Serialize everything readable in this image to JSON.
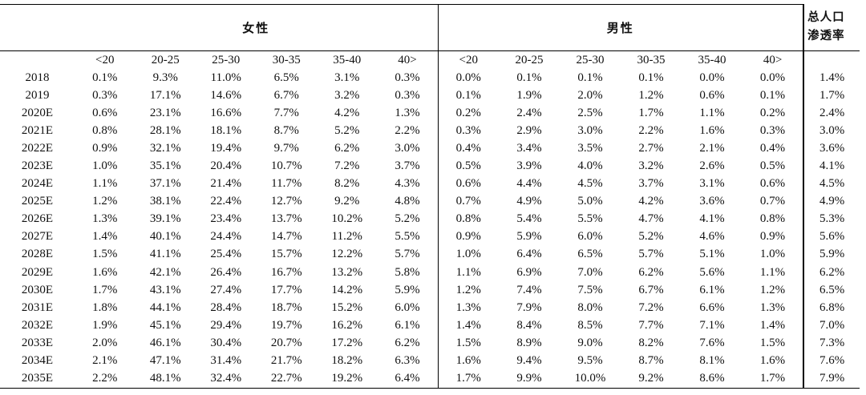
{
  "header": {
    "female_label": "女性",
    "male_label": "男性",
    "penetration_label_line1": "总人口",
    "penetration_label_line2": "渗透率"
  },
  "age_groups": [
    "<20",
    "20-25",
    "25-30",
    "30-35",
    "35-40",
    "40>"
  ],
  "rows": [
    {
      "year": "2018",
      "female": [
        "0.1%",
        "9.3%",
        "11.0%",
        "6.5%",
        "3.1%",
        "0.3%"
      ],
      "male": [
        "0.0%",
        "0.1%",
        "0.1%",
        "0.1%",
        "0.0%",
        "0.0%"
      ],
      "total": "1.4%"
    },
    {
      "year": "2019",
      "female": [
        "0.3%",
        "17.1%",
        "14.6%",
        "6.7%",
        "3.2%",
        "0.3%"
      ],
      "male": [
        "0.1%",
        "1.9%",
        "2.0%",
        "1.2%",
        "0.6%",
        "0.1%"
      ],
      "total": "1.7%"
    },
    {
      "year": "2020E",
      "female": [
        "0.6%",
        "23.1%",
        "16.6%",
        "7.7%",
        "4.2%",
        "1.3%"
      ],
      "male": [
        "0.2%",
        "2.4%",
        "2.5%",
        "1.7%",
        "1.1%",
        "0.2%"
      ],
      "total": "2.4%"
    },
    {
      "year": "2021E",
      "female": [
        "0.8%",
        "28.1%",
        "18.1%",
        "8.7%",
        "5.2%",
        "2.2%"
      ],
      "male": [
        "0.3%",
        "2.9%",
        "3.0%",
        "2.2%",
        "1.6%",
        "0.3%"
      ],
      "total": "3.0%"
    },
    {
      "year": "2022E",
      "female": [
        "0.9%",
        "32.1%",
        "19.4%",
        "9.7%",
        "6.2%",
        "3.0%"
      ],
      "male": [
        "0.4%",
        "3.4%",
        "3.5%",
        "2.7%",
        "2.1%",
        "0.4%"
      ],
      "total": "3.6%"
    },
    {
      "year": "2023E",
      "female": [
        "1.0%",
        "35.1%",
        "20.4%",
        "10.7%",
        "7.2%",
        "3.7%"
      ],
      "male": [
        "0.5%",
        "3.9%",
        "4.0%",
        "3.2%",
        "2.6%",
        "0.5%"
      ],
      "total": "4.1%"
    },
    {
      "year": "2024E",
      "female": [
        "1.1%",
        "37.1%",
        "21.4%",
        "11.7%",
        "8.2%",
        "4.3%"
      ],
      "male": [
        "0.6%",
        "4.4%",
        "4.5%",
        "3.7%",
        "3.1%",
        "0.6%"
      ],
      "total": "4.5%"
    },
    {
      "year": "2025E",
      "female": [
        "1.2%",
        "38.1%",
        "22.4%",
        "12.7%",
        "9.2%",
        "4.8%"
      ],
      "male": [
        "0.7%",
        "4.9%",
        "5.0%",
        "4.2%",
        "3.6%",
        "0.7%"
      ],
      "total": "4.9%"
    },
    {
      "year": "2026E",
      "female": [
        "1.3%",
        "39.1%",
        "23.4%",
        "13.7%",
        "10.2%",
        "5.2%"
      ],
      "male": [
        "0.8%",
        "5.4%",
        "5.5%",
        "4.7%",
        "4.1%",
        "0.8%"
      ],
      "total": "5.3%"
    },
    {
      "year": "2027E",
      "female": [
        "1.4%",
        "40.1%",
        "24.4%",
        "14.7%",
        "11.2%",
        "5.5%"
      ],
      "male": [
        "0.9%",
        "5.9%",
        "6.0%",
        "5.2%",
        "4.6%",
        "0.9%"
      ],
      "total": "5.6%"
    },
    {
      "year": "2028E",
      "female": [
        "1.5%",
        "41.1%",
        "25.4%",
        "15.7%",
        "12.2%",
        "5.7%"
      ],
      "male": [
        "1.0%",
        "6.4%",
        "6.5%",
        "5.7%",
        "5.1%",
        "1.0%"
      ],
      "total": "5.9%"
    },
    {
      "year": "2029E",
      "female": [
        "1.6%",
        "42.1%",
        "26.4%",
        "16.7%",
        "13.2%",
        "5.8%"
      ],
      "male": [
        "1.1%",
        "6.9%",
        "7.0%",
        "6.2%",
        "5.6%",
        "1.1%"
      ],
      "total": "6.2%"
    },
    {
      "year": "2030E",
      "female": [
        "1.7%",
        "43.1%",
        "27.4%",
        "17.7%",
        "14.2%",
        "5.9%"
      ],
      "male": [
        "1.2%",
        "7.4%",
        "7.5%",
        "6.7%",
        "6.1%",
        "1.2%"
      ],
      "total": "6.5%"
    },
    {
      "year": "2031E",
      "female": [
        "1.8%",
        "44.1%",
        "28.4%",
        "18.7%",
        "15.2%",
        "6.0%"
      ],
      "male": [
        "1.3%",
        "7.9%",
        "8.0%",
        "7.2%",
        "6.6%",
        "1.3%"
      ],
      "total": "6.8%"
    },
    {
      "year": "2032E",
      "female": [
        "1.9%",
        "45.1%",
        "29.4%",
        "19.7%",
        "16.2%",
        "6.1%"
      ],
      "male": [
        "1.4%",
        "8.4%",
        "8.5%",
        "7.7%",
        "7.1%",
        "1.4%"
      ],
      "total": "7.0%"
    },
    {
      "year": "2033E",
      "female": [
        "2.0%",
        "46.1%",
        "30.4%",
        "20.7%",
        "17.2%",
        "6.2%"
      ],
      "male": [
        "1.5%",
        "8.9%",
        "9.0%",
        "8.2%",
        "7.6%",
        "1.5%"
      ],
      "total": "7.3%"
    },
    {
      "year": "2034E",
      "female": [
        "2.1%",
        "47.1%",
        "31.4%",
        "21.7%",
        "18.2%",
        "6.3%"
      ],
      "male": [
        "1.6%",
        "9.4%",
        "9.5%",
        "8.7%",
        "8.1%",
        "1.6%"
      ],
      "total": "7.6%"
    },
    {
      "year": "2035E",
      "female": [
        "2.2%",
        "48.1%",
        "32.4%",
        "22.7%",
        "19.2%",
        "6.4%"
      ],
      "male": [
        "1.7%",
        "9.9%",
        "10.0%",
        "9.2%",
        "8.6%",
        "1.7%"
      ],
      "total": "7.9%"
    }
  ]
}
